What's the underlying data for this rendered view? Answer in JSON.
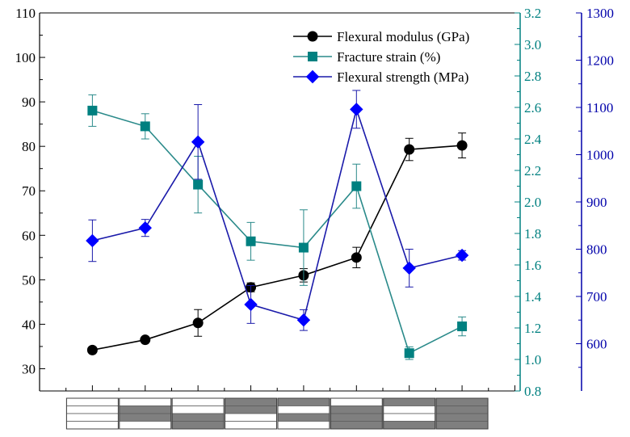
{
  "chart_data": {
    "type": "line",
    "title": "",
    "xlabel": "",
    "x": [
      1,
      2,
      3,
      4,
      5,
      6,
      7,
      8
    ],
    "x_ticks": "layup-stack-icons",
    "layups": [
      [
        "w",
        "w",
        "w",
        "w"
      ],
      [
        "w",
        "g",
        "g",
        "w"
      ],
      [
        "w",
        "w",
        "g",
        "g"
      ],
      [
        "g",
        "g",
        "w",
        "w"
      ],
      [
        "g",
        "w",
        "g",
        "w"
      ],
      [
        "w",
        "g",
        "g",
        "g"
      ],
      [
        "g",
        "w",
        "w",
        "g"
      ],
      [
        "g",
        "g",
        "g",
        "g"
      ]
    ],
    "axes": {
      "left": {
        "ylim": [
          25,
          110
        ],
        "ticks": [
          "30",
          "40",
          "50",
          "60",
          "70",
          "80",
          "90",
          "100",
          "110"
        ],
        "color": "#000000"
      },
      "right1": {
        "ylim": [
          0.8,
          3.2
        ],
        "ticks": [
          "0.8",
          "1.0",
          "1.2",
          "1.4",
          "1.6",
          "1.8",
          "2.0",
          "2.2",
          "2.4",
          "2.6",
          "2.8",
          "3.0",
          "3.2"
        ],
        "color": "#008080"
      },
      "right2": {
        "ylim": [
          500,
          1300
        ],
        "ticks": [
          "600",
          "700",
          "800",
          "900",
          "1000",
          "1100",
          "1200",
          "1300"
        ],
        "color": "#0000aa"
      }
    },
    "series": [
      {
        "name": "Flexural modulus (GPa)",
        "axis": "left",
        "marker": "circle",
        "color": "#000000",
        "values": [
          34.2,
          36.5,
          40.3,
          48.3,
          51.0,
          55.0,
          79.3,
          80.2
        ],
        "errors": [
          0.5,
          0.5,
          3.0,
          1.0,
          1.5,
          2.3,
          2.5,
          2.8
        ]
      },
      {
        "name": "Fracture strain (%)",
        "axis": "right1",
        "marker": "square",
        "color": "#008080",
        "line_color": "#2a8a8a",
        "values": [
          2.58,
          2.48,
          2.11,
          1.75,
          1.71,
          2.1,
          1.04,
          1.21
        ],
        "errors": [
          0.1,
          0.08,
          0.18,
          0.12,
          0.24,
          0.14,
          0.04,
          0.06
        ]
      },
      {
        "name": "Flexural strength (MPa)",
        "axis": "right2",
        "marker": "diamond",
        "color": "#0000ff",
        "line_color": "#1a1aaa",
        "values": [
          818,
          845,
          1027,
          683,
          650,
          1096,
          760,
          787
        ],
        "errors": [
          44,
          18,
          79,
          40,
          22,
          40,
          40,
          10
        ]
      }
    ],
    "legend": "top-right"
  }
}
